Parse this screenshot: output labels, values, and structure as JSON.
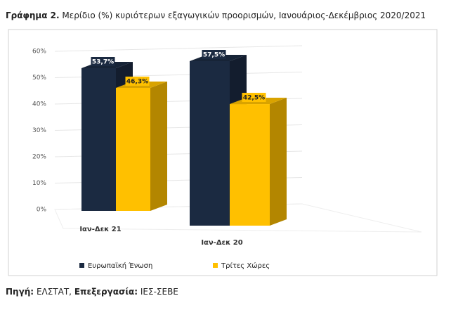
{
  "chart_data": {
    "type": "bar3d",
    "title_label": "Γράφημα 2.",
    "title": "Μερίδιο (%) κυριότερων εξαγωγικών προορισμών, Ιανουάριος-Δεκέμβριος 2020/2021",
    "categories": [
      "Ιαν-Δεκ 21",
      "Ιαν-Δεκ 20"
    ],
    "series": [
      {
        "name": "Ευρωπαϊκή Ένωση",
        "color": "#1b2a41",
        "values": [
          53.7,
          57.5
        ],
        "value_labels": [
          "53,7%",
          "57,5%"
        ]
      },
      {
        "name": "Τρίτες Χώρες",
        "color": "#ffc000",
        "values": [
          46.3,
          42.5
        ],
        "value_labels": [
          "46,3%",
          "42,5%"
        ]
      }
    ],
    "ylim": [
      0,
      60
    ],
    "yticks": [
      {
        "value": 0,
        "label": "0%"
      },
      {
        "value": 10,
        "label": "10%"
      },
      {
        "value": 20,
        "label": "20%"
      },
      {
        "value": 30,
        "label": "30%"
      },
      {
        "value": 40,
        "label": "40%"
      },
      {
        "value": 50,
        "label": "50%"
      },
      {
        "value": 60,
        "label": "60%"
      }
    ],
    "grid": true,
    "legend": "bottom"
  },
  "source": {
    "label": "Πηγή:",
    "text": "ΕΛΣΤΑΤ,",
    "processing_label": "Επεξεργασία:",
    "processing_text": "ΙΕΣ-ΣΕΒΕ"
  }
}
